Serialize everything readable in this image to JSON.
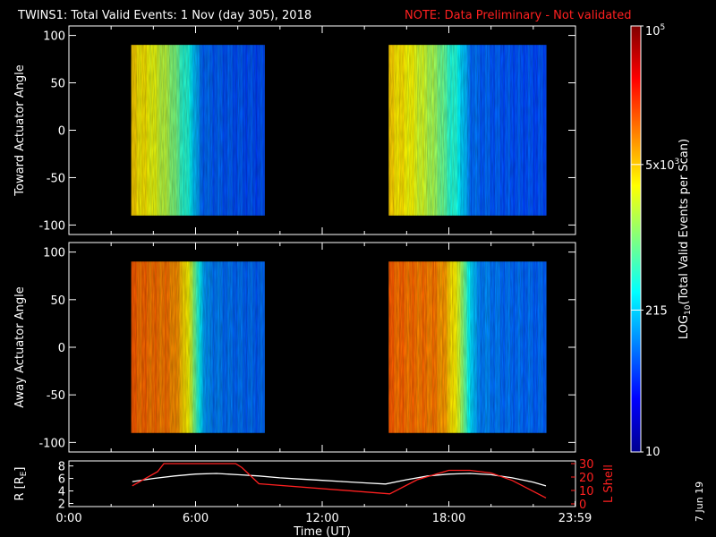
{
  "header": {
    "title": "TWINS1: Total Valid Events:  1 Nov (day 305), 2018",
    "note": "NOTE: Data Preliminary - Not validated"
  },
  "footer": {
    "date_stamp": "7 Jun 19"
  },
  "colors": {
    "background": "#000000",
    "axes": "#ffffff",
    "note_red": "#ff2020",
    "r_line": "#ffffff",
    "lshell_line": "#ff2020"
  },
  "chart_data": [
    {
      "type": "heatmap",
      "name": "toward",
      "ylabel": "Toward Actuator Angle",
      "ylim": [
        -110,
        110
      ],
      "xlim": [
        0,
        24
      ],
      "yticks": [
        {
          "v": 100,
          "label": "100"
        },
        {
          "v": 50,
          "label": "50"
        },
        {
          "v": 0,
          "label": "0"
        },
        {
          "v": -50,
          "label": "-50"
        },
        {
          "v": -100,
          "label": "-100"
        }
      ],
      "data_blocks": [
        {
          "x": [
            2.95,
            9.25
          ],
          "y": [
            -90,
            90
          ]
        },
        {
          "x": [
            15.15,
            22.6
          ],
          "y": [
            -90,
            90
          ]
        }
      ],
      "log_profile": [
        [
          2.95,
          3.65
        ],
        [
          3.3,
          3.6
        ],
        [
          3.8,
          3.5
        ],
        [
          4.2,
          3.35
        ],
        [
          4.6,
          3.2
        ],
        [
          5.0,
          3.0
        ],
        [
          5.3,
          2.75
        ],
        [
          5.7,
          2.55
        ],
        [
          6.0,
          2.2
        ],
        [
          6.25,
          1.95
        ],
        [
          6.6,
          1.9
        ],
        [
          7.5,
          1.85
        ],
        [
          9.25,
          1.8
        ]
      ]
    },
    {
      "type": "heatmap",
      "name": "away",
      "ylabel": "Away Actuator Angle",
      "ylim": [
        -110,
        110
      ],
      "xlim": [
        0,
        24
      ],
      "yticks": [
        {
          "v": 100,
          "label": "100"
        },
        {
          "v": 50,
          "label": "50"
        },
        {
          "v": 0,
          "label": "0"
        },
        {
          "v": -50,
          "label": "-50"
        },
        {
          "v": -100,
          "label": "-100"
        }
      ],
      "data_blocks": [
        {
          "x": [
            2.95,
            9.25
          ],
          "y": [
            -90,
            90
          ]
        },
        {
          "x": [
            15.15,
            22.6
          ],
          "y": [
            -90,
            90
          ]
        }
      ],
      "log_profile": [
        [
          2.95,
          4.1
        ],
        [
          3.8,
          4.05
        ],
        [
          4.8,
          4.0
        ],
        [
          5.2,
          3.85
        ],
        [
          5.5,
          3.6
        ],
        [
          5.8,
          3.3
        ],
        [
          6.1,
          2.6
        ],
        [
          6.5,
          2.05
        ],
        [
          7.5,
          1.95
        ],
        [
          9.25,
          1.9
        ]
      ]
    },
    {
      "type": "line",
      "name": "orbit",
      "xlabel": "Time (UT)",
      "ylabel": "R [R",
      "ylabel_sub": "E",
      "ylabel_close": "]",
      "ylabel_right": "L Shell",
      "xlim": [
        0,
        24
      ],
      "xticks": [
        {
          "v": 0,
          "label": "0:00"
        },
        {
          "v": 6,
          "label": "6:00"
        },
        {
          "v": 12,
          "label": "12:00"
        },
        {
          "v": 18,
          "label": "18:00"
        },
        {
          "v": 23.98,
          "label": "23:59"
        }
      ],
      "ylim_left": [
        1.5,
        8.8
      ],
      "yticks_left": [
        {
          "v": 2,
          "label": "2"
        },
        {
          "v": 4,
          "label": "4"
        },
        {
          "v": 6,
          "label": "6"
        },
        {
          "v": 8,
          "label": "8"
        }
      ],
      "ylim_right": [
        0,
        30
      ],
      "yticks_right": [
        {
          "v": 0,
          "label": "0"
        },
        {
          "v": 10,
          "label": "10"
        },
        {
          "v": 20,
          "label": "20"
        },
        {
          "v": 30,
          "label": "30"
        }
      ],
      "series": [
        {
          "name": "R",
          "axis": "left",
          "x": [
            3.0,
            4.0,
            5.0,
            6.0,
            7.0,
            8.0,
            9.0,
            10.0,
            11.0,
            12.0,
            13.0,
            14.0,
            15.0,
            16.0,
            17.0,
            18.0,
            19.0,
            20.0,
            21.0,
            22.0,
            22.6
          ],
          "y": [
            5.5,
            6.0,
            6.4,
            6.7,
            6.8,
            6.6,
            6.4,
            6.1,
            5.9,
            5.7,
            5.5,
            5.3,
            5.1,
            5.8,
            6.4,
            6.7,
            6.8,
            6.6,
            6.1,
            5.4,
            4.8
          ]
        },
        {
          "name": "L Shell",
          "axis": "right",
          "x": [
            3.0,
            4.2,
            4.5,
            7.9,
            8.2,
            9.0,
            15.2,
            16.5,
            18.0,
            19.0,
            20.0,
            21.0,
            22.6
          ],
          "y": [
            13.5,
            24.0,
            30.0,
            30.0,
            27.0,
            15.0,
            7.5,
            18.0,
            25.0,
            25.0,
            23.0,
            17.5,
            4.5
          ]
        }
      ]
    },
    {
      "type": "heatmap_colorbar",
      "ylabel": "LOG",
      "ylabel_sub": "10",
      "ylabel_rest": "(Total Valid Events per Scan)",
      "scale": "log",
      "range": [
        10,
        100000
      ],
      "ticks": [
        {
          "v": 10,
          "label": "10"
        },
        {
          "v": 215,
          "label": "215"
        },
        {
          "v": 5000,
          "mant": "5x10",
          "exp": "3"
        },
        {
          "v": 100000,
          "mant": "10",
          "exp": "5"
        }
      ]
    }
  ]
}
